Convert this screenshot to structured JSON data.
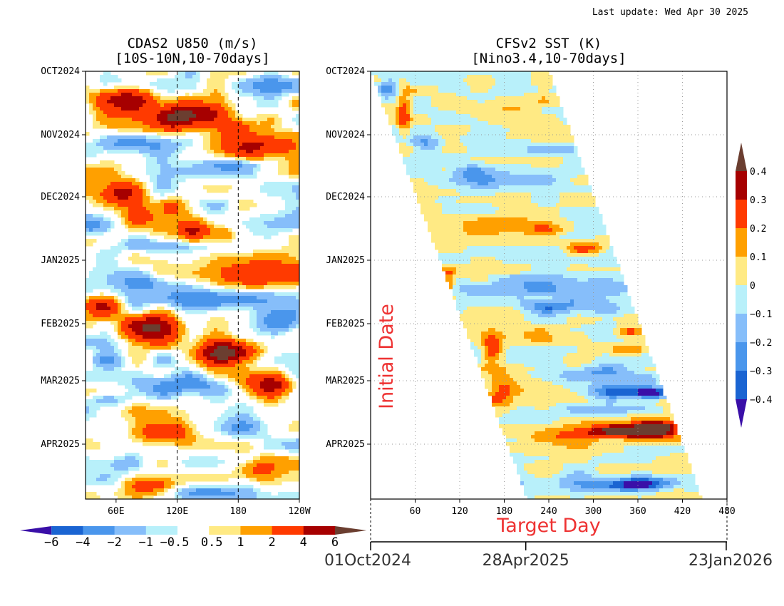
{
  "last_update": "Last update: Wed Apr 30 2025",
  "left_panel": {
    "title_line1": "CDAS2 U850 (m/s)",
    "title_line2": "[10S-10N,10-70days]",
    "x_ticks": [
      "60E",
      "120E",
      "180",
      "120W"
    ],
    "x_tick_lon": [
      60,
      120,
      180,
      240
    ],
    "x_range_lon": [
      30,
      240
    ],
    "dashed_lines_lon": [
      120,
      180
    ],
    "y_ticks": [
      "OCT2024",
      "NOV2024",
      "DEC2024",
      "JAN2025",
      "FEB2025",
      "MAR2025",
      "APR2025"
    ]
  },
  "right_panel": {
    "title_line1": "CFSv2 SST (K)",
    "title_line2": "[Nino3.4,10-70days]",
    "x_ticks": [
      "60",
      "120",
      "180",
      "240",
      "300",
      "360",
      "420",
      "480"
    ],
    "x_range": [
      0,
      480
    ],
    "y_ticks": [
      "OCT2024",
      "NOV2024",
      "DEC2024",
      "JAN2025",
      "FEB2025",
      "MAR2025",
      "APR2025"
    ],
    "y_axis_annotation": "Initial Date",
    "x_axis_annotation": "Target Day",
    "annotation_color": "#ee3333"
  },
  "date_axis": {
    "labels": [
      "01Oct2024",
      "28Apr2025",
      "23Jan2026"
    ],
    "label_day": [
      0,
      209,
      479
    ]
  },
  "left_colorbar": {
    "labels": [
      "−6",
      "−4",
      "−2",
      "−1",
      "−0.5",
      "0.5",
      "1",
      "2",
      "4",
      "6"
    ],
    "colors": [
      "#3a0fa8",
      "#1a64d2",
      "#4a96ec",
      "#86befa",
      "#b8f0fa",
      "#ffffff",
      "#ffea84",
      "#ffa000",
      "#ff3a00",
      "#a60000",
      "#6b3e30"
    ]
  },
  "right_colorbar": {
    "labels": [
      "0.4",
      "0.3",
      "0.2",
      "0.1",
      "0",
      "−0.1",
      "−0.2",
      "−0.3",
      "−0.4"
    ],
    "colors": [
      "#6b3e30",
      "#a60000",
      "#ff3a00",
      "#ffa000",
      "#ffea84",
      "#b8f0fa",
      "#86befa",
      "#4a96ec",
      "#1a64d2",
      "#3a0fa8"
    ]
  },
  "chart_data": [
    {
      "type": "heatmap",
      "title": "CDAS2 U850 (m/s) [10S-10N,10-70days]",
      "x_axis": "longitude",
      "x_range": [
        "30E",
        "120W"
      ],
      "y_axis": "date",
      "y_range": [
        "OCT2024",
        "APR2025"
      ],
      "units": "m/s",
      "levels": [
        -6,
        -4,
        -2,
        -1,
        -0.5,
        0.5,
        1,
        2,
        4,
        6
      ],
      "features": [
        {
          "date": "Oct 2024 (late)",
          "lon": "75E-105E",
          "value": 4
        },
        {
          "date": "Nov 2024 (early)",
          "lon": "120E-140E",
          "value": 6
        },
        {
          "date": "Nov 2024",
          "lon": "180-130W",
          "value": 4
        },
        {
          "date": "Dec 2024 (early)",
          "lon": "60E-80E",
          "value": 4
        },
        {
          "date": "Jan 2025 (mid)",
          "lon": "180-130W",
          "value": 4
        },
        {
          "date": "Feb 2025 (early)",
          "lon": "30E-50E",
          "value": 4
        },
        {
          "date": "Feb 2025 (mid)",
          "lon": "90E-120E",
          "value": 6
        },
        {
          "date": "Feb 2025 (late)",
          "lon": "165E-190",
          "value": 6
        },
        {
          "date": "Mar 2025",
          "lon": "210-235",
          "value": 4
        },
        {
          "date": "Apr 2025 (early)",
          "lon": "80E-110E",
          "value": 4
        },
        {
          "date": "Jan 2025 (early)",
          "lon": "40E-180",
          "value": -2
        },
        {
          "date": "Mar 2025 (mid)",
          "lon": "60E-200",
          "value": -2
        }
      ]
    },
    {
      "type": "heatmap",
      "title": "CFSv2 SST (K) [Nino3.4,10-70days]",
      "x_axis": "target day",
      "x_range": [
        0,
        480
      ],
      "y_axis": "initial date",
      "y_range": [
        "OCT2024",
        "APR2025"
      ],
      "units": "K",
      "levels": [
        -0.4,
        -0.3,
        -0.2,
        -0.1,
        0,
        0.1,
        0.2,
        0.3,
        0.4
      ],
      "features": [
        {
          "init": "Oct 2024",
          "target_day": "30-60",
          "value": 0.2
        },
        {
          "init": "Dec 2024-Jan 2025",
          "target_day": "90-330",
          "value": 0.2
        },
        {
          "init": "Jan 2025",
          "target_day": "270-310",
          "value": 0.3
        },
        {
          "init": "Jan 2025",
          "target_day": "120-380",
          "value": -0.1
        },
        {
          "init": "Feb 2025",
          "target_day": "160-190",
          "value": 0.3
        },
        {
          "init": "Feb 2025",
          "target_day": "340-400",
          "value": 0.3
        },
        {
          "init": "Mar 2025",
          "target_day": "370-420",
          "value": -0.4
        },
        {
          "init": "Apr 2025",
          "target_day": "300-420",
          "value": 0.4
        },
        {
          "init": "Apr 2025 (late)",
          "target_day": "300-450",
          "value": -0.3
        }
      ]
    }
  ]
}
